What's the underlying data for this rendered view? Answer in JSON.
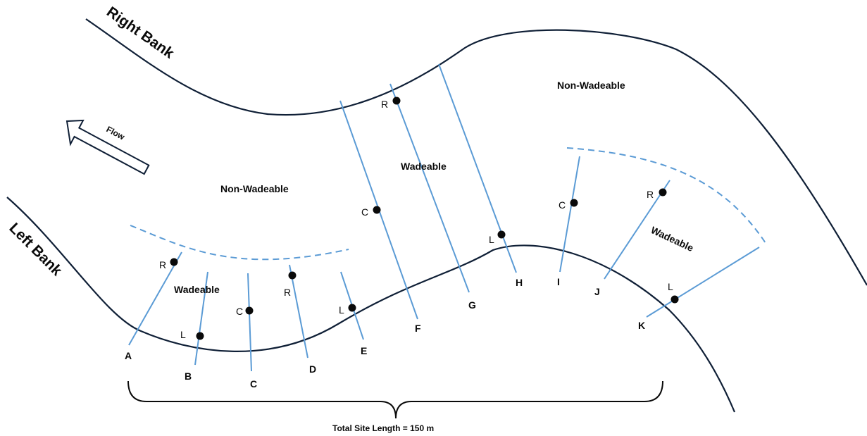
{
  "banks": {
    "right": "Right Bank",
    "left": "Left Bank"
  },
  "flow_label": "Flow",
  "zones": {
    "non_wadeable_left": "Non-Wadeable",
    "non_wadeable_right": "Non-Wadeable",
    "wadeable_left": "Wadeable",
    "wadeable_center": "Wadeable",
    "wadeable_right": "Wadeable"
  },
  "transects": [
    "A",
    "B",
    "C",
    "D",
    "E",
    "F",
    "G",
    "H",
    "I",
    "J",
    "K"
  ],
  "points": {
    "a_r": "R",
    "b_l": "L",
    "c_c": "C",
    "d_r": "R",
    "e_l": "L",
    "f_c": "C",
    "g_r": "R",
    "h_l": "L",
    "i_c": "C",
    "j_r": "R",
    "k_l": "L"
  },
  "total_length": "Total Site Length = 150 m"
}
